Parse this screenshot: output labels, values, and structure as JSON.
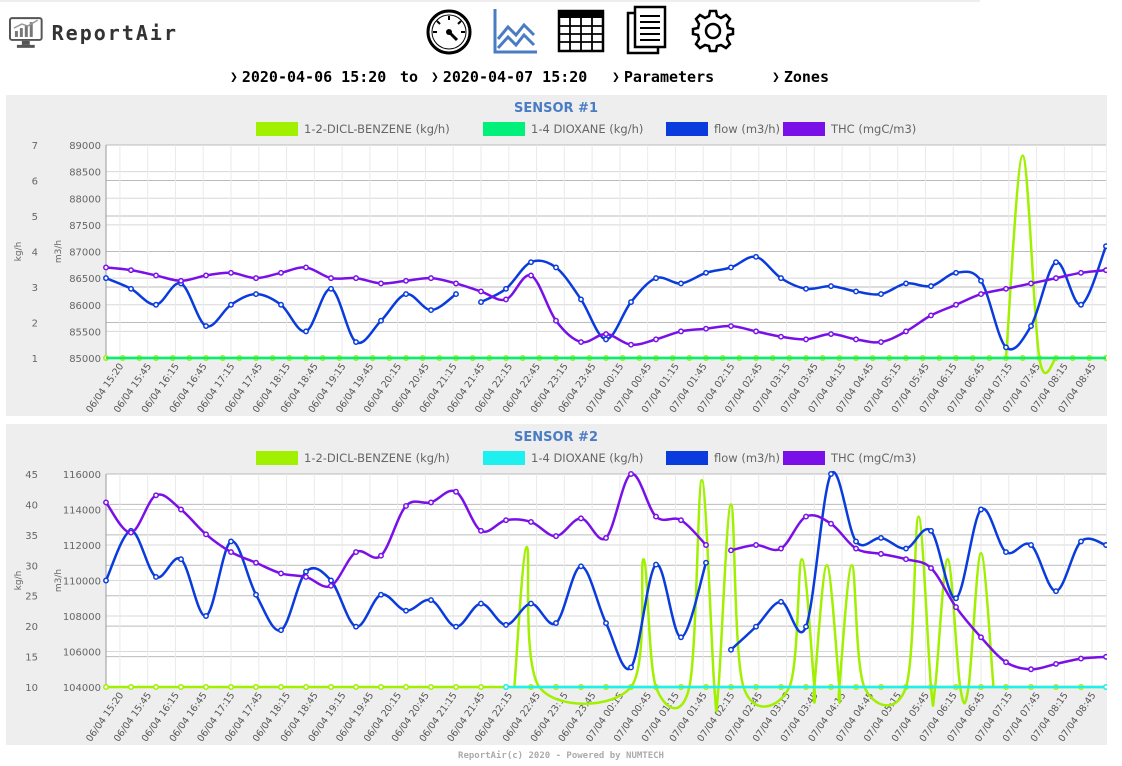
{
  "app": {
    "name": "ReportAir"
  },
  "toolbar": {
    "items": [
      {
        "name": "dashboard-gauge-icon"
      },
      {
        "name": "line-chart-icon"
      },
      {
        "name": "table-icon"
      },
      {
        "name": "report-document-icon"
      },
      {
        "name": "settings-gear-icon"
      }
    ]
  },
  "filters": {
    "start": "2020-04-06 15:20",
    "to_label": "to",
    "end": "2020-04-07 15:20",
    "parameters_label": "Parameters",
    "zones_label": "Zones"
  },
  "footer": {
    "text": "ReportAir(c) 2020 - Powered by NUMTECH"
  },
  "colors": {
    "benzene": "#a0f000",
    "dioxane1": "#00f07a",
    "dioxane2": "#1ef0f0",
    "flow": "#0a3bdc",
    "thc": "#7a10e8",
    "title": "#4a7cc4"
  },
  "chart_data": [
    {
      "type": "line",
      "title": "SENSOR #1",
      "ylabel_left": "kg/h",
      "ylabel_right": "m3/h",
      "y1lim": [
        1,
        7
      ],
      "y1ticks": [
        "1",
        "2",
        "3",
        "4",
        "5",
        "6",
        "7"
      ],
      "y2lim": [
        85000,
        89000
      ],
      "y2ticks": [
        "85000",
        "85500",
        "86000",
        "86500",
        "87000",
        "87500",
        "88000",
        "88500",
        "89000"
      ],
      "grid": true,
      "legend": "top",
      "categories": [
        "06/04 15:20",
        "06/04 15:45",
        "06/04 16:15",
        "06/04 16:45",
        "06/04 17:15",
        "06/04 17:45",
        "06/04 18:15",
        "06/04 18:45",
        "06/04 19:15",
        "06/04 19:45",
        "06/04 20:15",
        "06/04 20:45",
        "06/04 21:15",
        "06/04 21:45",
        "06/04 22:15",
        "06/04 22:45",
        "06/04 23:15",
        "06/04 23:45",
        "07/04 00:15",
        "07/04 00:45",
        "07/04 01:15",
        "07/04 01:45",
        "07/04 02:15",
        "07/04 02:45",
        "07/04 03:15",
        "07/04 03:45",
        "07/04 04:15",
        "07/04 04:45",
        "07/04 05:15",
        "07/04 05:45",
        "07/04 06:15",
        "07/04 06:45",
        "07/04 07:15",
        "07/04 07:45",
        "07/04 08:15",
        "07/04 08:45"
      ],
      "x_max": 120,
      "series": [
        {
          "name": "1-2-DICL-BENZENE (kg/h)",
          "axis": "left",
          "color": "#a0f000",
          "marker": true,
          "x": [
            0,
            2,
            4,
            6,
            8,
            10,
            12,
            14,
            16,
            18,
            20,
            22,
            24,
            26,
            28,
            30,
            32,
            34,
            36,
            38,
            40,
            42,
            44,
            46,
            48,
            50,
            52,
            54,
            56,
            58,
            60,
            62,
            64,
            66,
            68,
            70,
            72,
            74,
            76,
            78,
            80,
            82,
            84,
            86,
            88,
            90,
            92,
            94,
            96,
            98,
            100,
            102,
            104,
            106,
            108,
            110,
            112,
            114,
            116,
            118,
            120
          ],
          "y": [
            1,
            1,
            1,
            1,
            1,
            1,
            1,
            1,
            1,
            1,
            1,
            1,
            1,
            1,
            1,
            1,
            1,
            1,
            1,
            1,
            1,
            1,
            1,
            1,
            1,
            1,
            1,
            1,
            1,
            1,
            1,
            1,
            1,
            1,
            1,
            1,
            1,
            1,
            1,
            1,
            1,
            1,
            1,
            1,
            1,
            1,
            1,
            1,
            1,
            1,
            1,
            1,
            1,
            1,
            1,
            1,
            1.0,
            1.0,
            1,
            1,
            1
          ]
        },
        {
          "name": "1-2-DICL-BENZENE peak",
          "axis": "left",
          "color": "#a0f000",
          "marker": false,
          "legend": false,
          "x": [
            108,
            110,
            112,
            114
          ],
          "y": [
            1,
            6.7,
            1,
            1
          ]
        },
        {
          "name": "1-4 DIOXANE (kg/h)",
          "axis": "left",
          "color": "#00f07a",
          "marker": false,
          "x": [
            0,
            120
          ],
          "y": [
            1,
            1
          ]
        },
        {
          "name": "flow (m3/h)",
          "axis": "right",
          "color": "#0a3bdc",
          "marker": true,
          "x": [
            0,
            3,
            6,
            9,
            12,
            15,
            18,
            21,
            24,
            27,
            30,
            33,
            36,
            39,
            42,
            45,
            48,
            51,
            54,
            57,
            60,
            63,
            66,
            69,
            72,
            75,
            78,
            81,
            84,
            87,
            90,
            93,
            96,
            99,
            102,
            105,
            108,
            111,
            114,
            117,
            120
          ],
          "y": [
            86500,
            86300,
            86000,
            86400,
            85600,
            86000,
            86200,
            86000,
            85500,
            86300,
            85300,
            85700,
            86200,
            85900,
            86200,
            86050,
            86300,
            86800,
            86700,
            86100,
            85350,
            86050,
            86500,
            86400,
            86600,
            86700,
            86900,
            86500,
            86300,
            86350,
            86250,
            86200,
            86400,
            86350,
            86600,
            86450,
            85200,
            85600,
            86800,
            86000,
            87100
          ],
          "gap": [
            [
              42,
              45
            ]
          ]
        },
        {
          "name": "THC (mgC/m3)",
          "axis": "right",
          "color": "#7a10e8",
          "marker": true,
          "x": [
            0,
            3,
            6,
            9,
            12,
            15,
            18,
            21,
            24,
            27,
            30,
            33,
            36,
            39,
            42,
            45,
            48,
            51,
            54,
            57,
            60,
            63,
            66,
            69,
            72,
            75,
            78,
            81,
            84,
            87,
            90,
            93,
            96,
            99,
            102,
            105,
            108,
            111,
            114,
            117,
            120
          ],
          "y": [
            86700,
            86650,
            86550,
            86450,
            86550,
            86600,
            86500,
            86600,
            86700,
            86500,
            86500,
            86400,
            86450,
            86500,
            86400,
            86250,
            86100,
            86550,
            85700,
            85300,
            85450,
            85250,
            85350,
            85500,
            85550,
            85600,
            85500,
            85400,
            85350,
            85450,
            85350,
            85300,
            85500,
            85800,
            86000,
            86200,
            86300,
            86400,
            86500,
            86600,
            86650
          ]
        }
      ]
    },
    {
      "type": "line",
      "title": "SENSOR #2",
      "ylabel_left": "kg/h",
      "ylabel_right": "m3/h",
      "y1lim": [
        10,
        45
      ],
      "y1ticks": [
        "10",
        "15",
        "20",
        "25",
        "30",
        "35",
        "40",
        "45"
      ],
      "y2lim": [
        104000,
        116000
      ],
      "y2ticks": [
        "104000",
        "106000",
        "108000",
        "110000",
        "112000",
        "114000",
        "116000"
      ],
      "grid": true,
      "legend": "top",
      "categories": [
        "06/04 15:20",
        "06/04 15:45",
        "06/04 16:15",
        "06/04 16:45",
        "06/04 17:15",
        "06/04 17:45",
        "06/04 18:15",
        "06/04 18:45",
        "06/04 19:15",
        "06/04 19:45",
        "06/04 20:15",
        "06/04 20:45",
        "06/04 21:15",
        "06/04 21:45",
        "06/04 22:15",
        "06/04 22:45",
        "06/04 23:15",
        "06/04 23:45",
        "07/04 00:15",
        "07/04 00:45",
        "07/04 01:15",
        "07/04 01:45",
        "07/04 02:15",
        "07/04 02:45",
        "07/04 03:15",
        "07/04 03:45",
        "07/04 04:15",
        "07/04 04:45",
        "07/04 05:15",
        "07/04 05:45",
        "07/04 06:15",
        "07/04 06:45",
        "07/04 07:15",
        "07/04 07:45",
        "07/04 08:15",
        "07/04 08:45"
      ],
      "x_max": 120,
      "series": [
        {
          "name": "1-2-DICL-BENZENE (kg/h)",
          "axis": "left",
          "color": "#a0f000",
          "marker": true,
          "x": [
            0,
            3,
            6,
            9,
            12,
            15,
            18,
            21,
            24,
            27,
            30,
            33,
            36,
            39,
            42,
            45,
            48,
            51,
            54,
            57,
            60,
            63,
            66,
            69,
            72,
            75,
            78,
            81,
            84,
            87,
            90,
            93,
            96,
            99,
            102,
            105,
            108,
            111,
            114,
            117,
            120
          ],
          "y": [
            10,
            10,
            10,
            10,
            10,
            10,
            10,
            10,
            10,
            10,
            10,
            10,
            10,
            10,
            10,
            10,
            10,
            10,
            10,
            10,
            10,
            10,
            10,
            10,
            10,
            10,
            10,
            10,
            10,
            10,
            10,
            10,
            10,
            10,
            10,
            10,
            10,
            10,
            10,
            10,
            10
          ]
        },
        {
          "name": "1-2-DICL-BENZENE peaks",
          "axis": "left",
          "color": "#a0f000",
          "marker": false,
          "legend": false,
          "x": [
            49,
            50.5,
            52,
            63,
            64.5,
            66,
            70,
            71.5,
            73,
            73.5,
            75,
            76.5,
            82,
            83.5,
            85,
            85,
            86.5,
            88,
            88,
            89.5,
            91,
            96,
            97.5,
            99,
            99.5,
            101,
            102.5,
            103.5,
            105,
            106.5
          ],
          "y": [
            10,
            33,
            10,
            10,
            31,
            10,
            10,
            44,
            10,
            10,
            40,
            10,
            10,
            31,
            10,
            10,
            30,
            10,
            10,
            30,
            10,
            10,
            38,
            10,
            10,
            31,
            10,
            10,
            32,
            10
          ]
        },
        {
          "name": "1-4 DIOXANE (kg/h)",
          "axis": "left",
          "color": "#1ef0f0",
          "marker": true,
          "x": [
            48,
            120
          ],
          "y": [
            10,
            10
          ]
        },
        {
          "name": "flow (m3/h)",
          "axis": "right",
          "color": "#0a3bdc",
          "marker": true,
          "x": [
            0,
            3,
            6,
            9,
            12,
            15,
            18,
            21,
            24,
            27,
            30,
            33,
            36,
            39,
            42,
            45,
            48,
            51,
            54,
            57,
            60,
            63,
            66,
            69,
            72,
            75,
            78,
            81,
            84,
            87,
            90,
            93,
            96,
            99,
            102,
            105,
            108,
            111,
            114,
            117,
            120
          ],
          "y": [
            110000,
            112800,
            110200,
            111200,
            108000,
            112200,
            109200,
            107200,
            110500,
            110000,
            107400,
            109200,
            108300,
            108900,
            107400,
            108700,
            107500,
            108700,
            107600,
            110800,
            107600,
            105100,
            110900,
            106800,
            111000,
            106100,
            107400,
            108800,
            107400,
            116000,
            112200,
            112400,
            111800,
            112800,
            109000,
            114000,
            111600,
            112000,
            109400,
            112200,
            112000
          ],
          "gap": [
            [
              72,
              75
            ]
          ]
        },
        {
          "name": "THC (mgC/m3)",
          "axis": "right",
          "color": "#7a10e8",
          "marker": true,
          "x": [
            0,
            3,
            6,
            9,
            12,
            15,
            18,
            21,
            24,
            27,
            30,
            33,
            36,
            39,
            42,
            45,
            48,
            51,
            54,
            57,
            60,
            63,
            66,
            69,
            72,
            75,
            78,
            81,
            84,
            87,
            90,
            93,
            96,
            99,
            102,
            105,
            108,
            111,
            114,
            117,
            120
          ],
          "y": [
            114400,
            112700,
            114800,
            114000,
            112600,
            111600,
            111000,
            110400,
            110200,
            109700,
            111600,
            111400,
            114200,
            114400,
            115000,
            112800,
            113400,
            113300,
            112500,
            113500,
            112400,
            116000,
            113600,
            113400,
            112000,
            111700,
            112000,
            111800,
            113600,
            113200,
            111800,
            111500,
            111200,
            110700,
            108500,
            106800,
            105400,
            105000,
            105300,
            105600,
            105700
          ],
          "gap": [
            [
              72,
              75
            ]
          ]
        }
      ]
    }
  ]
}
